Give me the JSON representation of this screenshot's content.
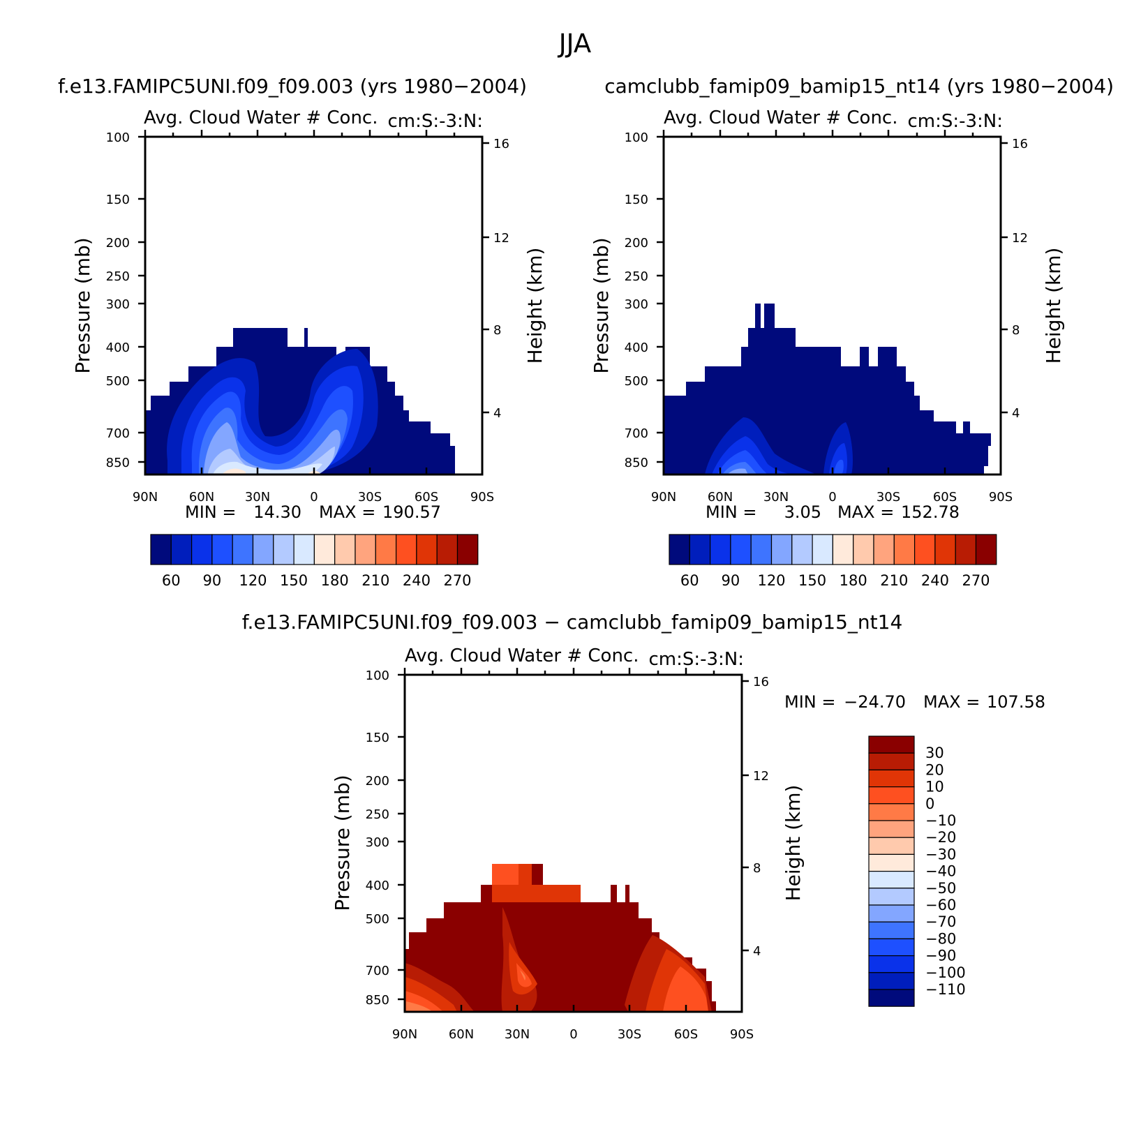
{
  "figure": {
    "season": "JJA",
    "diff_title": "f.e13.FAMIPC5UNI.f09_f09.003 − camclubb_famip09_bamip15_nt14"
  },
  "chart_data": [
    {
      "type": "heatmap",
      "case_title": "f.e13.FAMIPC5UNI.f09_f09.003 (yrs 1980−2004)",
      "title": "Avg. Cloud Water # Conc.",
      "units": "cm:S:-3:N:",
      "ylabel": "Pressure (mb)",
      "y2label": "Height (km)",
      "x_ticks": [
        "90N",
        "60N",
        "30N",
        "0",
        "30S",
        "60S",
        "90S"
      ],
      "y_ticks": [
        100,
        150,
        200,
        250,
        300,
        400,
        500,
        700,
        850
      ],
      "y2_ticks": [
        16,
        12,
        8,
        4
      ],
      "ylim": [
        100,
        1000
      ],
      "min_label": "MIN =",
      "min_value": "14.30",
      "max_label": "MAX =",
      "max_value": "190.57",
      "colorbar_labels": [
        "60",
        "90",
        "120",
        "150",
        "180",
        "210",
        "240",
        "270"
      ],
      "colorbar_colors": [
        "#000a7c",
        "#001ebc",
        "#0a32ea",
        "#1e50ff",
        "#3e74ff",
        "#83a6ff",
        "#b3caff",
        "#d9e9ff",
        "#ffeadb",
        "#ffcaad",
        "#ffa47e",
        "#ff7a46",
        "#fe5020",
        "#e03506",
        "#b81c04",
        "#8a0000"
      ]
    },
    {
      "type": "heatmap",
      "case_title": "camclubb_famip09_bamip15_nt14 (yrs 1980−2004)",
      "title": "Avg. Cloud Water # Conc.",
      "units": "cm:S:-3:N:",
      "ylabel": "Pressure (mb)",
      "y2label": "Height (km)",
      "x_ticks": [
        "90N",
        "60N",
        "30N",
        "0",
        "30S",
        "60S",
        "90S"
      ],
      "y_ticks": [
        100,
        150,
        200,
        250,
        300,
        400,
        500,
        700,
        850
      ],
      "y2_ticks": [
        16,
        12,
        8,
        4
      ],
      "ylim": [
        100,
        1000
      ],
      "min_label": "MIN =",
      "min_value": "3.05",
      "max_label": "MAX =",
      "max_value": "152.78",
      "colorbar_labels": [
        "60",
        "90",
        "120",
        "150",
        "180",
        "210",
        "240",
        "270"
      ],
      "colorbar_colors": [
        "#000a7c",
        "#001ebc",
        "#0a32ea",
        "#1e50ff",
        "#3e74ff",
        "#83a6ff",
        "#b3caff",
        "#d9e9ff",
        "#ffeadb",
        "#ffcaad",
        "#ffa47e",
        "#ff7a46",
        "#fe5020",
        "#e03506",
        "#b81c04",
        "#8a0000"
      ]
    },
    {
      "type": "heatmap",
      "title": "Avg. Cloud Water # Conc.",
      "units": "cm:S:-3:N:",
      "ylabel": "Pressure (mb)",
      "y2label": "Height (km)",
      "x_ticks": [
        "90N",
        "60N",
        "30N",
        "0",
        "30S",
        "60S",
        "90S"
      ],
      "y_ticks": [
        100,
        150,
        200,
        250,
        300,
        400,
        500,
        700,
        850
      ],
      "y2_ticks": [
        16,
        12,
        8,
        4
      ],
      "ylim": [
        100,
        1000
      ],
      "min_label": "MIN =",
      "min_value": "−24.70",
      "max_label": "MAX =",
      "max_value": "107.58",
      "colorbar_labels": [
        "30",
        "20",
        "10",
        "0",
        "−10",
        "−20",
        "−30",
        "−40",
        "−50",
        "−60",
        "−70",
        "−80",
        "−90",
        "−100",
        "−110"
      ],
      "colorbar_colors": [
        "#8a0000",
        "#b81c04",
        "#e03506",
        "#fe5020",
        "#ff7a46",
        "#ffa47e",
        "#ffcaad",
        "#ffeadb",
        "#d9e9ff",
        "#b3caff",
        "#83a6ff",
        "#3e74ff",
        "#1e50ff",
        "#0a32ea",
        "#001ebc",
        "#000a7c"
      ]
    }
  ]
}
